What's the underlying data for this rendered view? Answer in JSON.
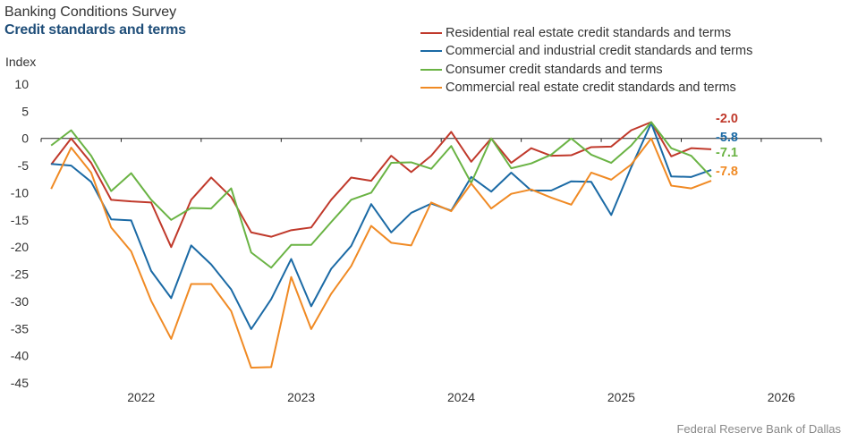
{
  "header": {
    "title": "Banking Conditions Survey",
    "subtitle": "Credit standards and terms"
  },
  "footer": {
    "source": "Federal Reserve Bank of Dallas"
  },
  "chart_data": {
    "type": "line",
    "title": "Credit standards and terms",
    "ylabel": "Index",
    "xlabel": "",
    "ylim": [
      -45,
      10
    ],
    "yticks": [
      10,
      5,
      0,
      -5,
      -10,
      -15,
      -20,
      -25,
      -30,
      -35,
      -40,
      -45
    ],
    "xticks": [
      "2022",
      "2023",
      "2024",
      "2025",
      "2026"
    ],
    "x_start": "2021-Q4 mid",
    "x_end": "2026-Q4",
    "x_index_range": [
      0,
      34
    ],
    "legend_position": "top-right",
    "series": [
      {
        "name": "Residential real estate credit standards and terms",
        "color": "#c0392b",
        "end_label": "-2.0",
        "values": [
          -4.8,
          0,
          -4.5,
          -11.3,
          -11.6,
          -11.8,
          -20,
          -11.3,
          -7.2,
          -10.8,
          -17.3,
          -18.1,
          -16.9,
          -16.4,
          -11.3,
          -7.2,
          -7.8,
          -3.2,
          -6.2,
          -3.2,
          1.2,
          -4.3,
          0,
          -4.5,
          -1.8,
          -3.2,
          -3.1,
          -1.6,
          -1.5,
          1.5,
          3.0,
          -3.3,
          -1.8,
          -2.0
        ],
        "x_index": [
          1,
          2,
          3,
          4,
          5,
          6,
          7,
          8,
          9,
          10,
          11,
          12,
          13,
          14,
          15,
          16,
          17,
          18,
          19,
          20,
          21,
          22,
          23,
          24,
          25,
          26,
          27,
          28,
          29,
          30,
          31,
          32,
          33,
          34
        ]
      },
      {
        "name": "Commercial and industrial credit standards and terms",
        "color": "#1b6aa5",
        "end_label": "-5.8",
        "values": [
          -4.7,
          -5.0,
          -8.0,
          -14.9,
          -15.1,
          -24.4,
          -29.4,
          -19.7,
          -23.2,
          -27.8,
          -35.1,
          -29.6,
          -22.2,
          -30.9,
          -24.0,
          -19.8,
          -12.1,
          -17.3,
          -13.7,
          -12.0,
          -13.3,
          -7.1,
          -9.8,
          -6.3,
          -9.6,
          -9.6,
          -7.9,
          -8.0,
          -14.1,
          -5.3,
          2.8,
          -7.0,
          -7.1,
          -5.8
        ],
        "x_index": [
          1,
          2,
          3,
          4,
          5,
          6,
          7,
          8,
          9,
          10,
          11,
          12,
          13,
          14,
          15,
          16,
          17,
          18,
          19,
          20,
          21,
          22,
          23,
          24,
          25,
          26,
          27,
          28,
          29,
          30,
          31,
          32,
          33,
          34
        ]
      },
      {
        "name": "Consumer credit standards and terms",
        "color": "#6ab344",
        "end_label": "-7.1",
        "values": [
          -1.3,
          1.5,
          -3.2,
          -9.7,
          -6.4,
          -11.3,
          -15.0,
          -12.8,
          -12.9,
          -9.2,
          -21.0,
          -23.8,
          -19.6,
          -19.6,
          -15.4,
          -11.3,
          -10.0,
          -4.5,
          -4.4,
          -5.6,
          -1.4,
          -8.2,
          0,
          -5.5,
          -4.6,
          -3.0,
          0,
          -3.0,
          -4.5,
          -1.3,
          3.0,
          -1.8,
          -3.2,
          -7.1
        ],
        "x_index": [
          1,
          2,
          3,
          4,
          5,
          6,
          7,
          8,
          9,
          10,
          11,
          12,
          13,
          14,
          15,
          16,
          17,
          18,
          19,
          20,
          21,
          22,
          23,
          24,
          25,
          26,
          27,
          28,
          29,
          30,
          31,
          32,
          33,
          34
        ]
      },
      {
        "name": "Commercial real estate credit standards and terms",
        "color": "#f08a24",
        "end_label": "-7.8",
        "values": [
          -9.3,
          -1.7,
          -6.3,
          -16.4,
          -20.8,
          -29.9,
          -36.9,
          -26.8,
          -26.8,
          -31.8,
          -42.2,
          -42.1,
          -25.5,
          -35.1,
          -28.6,
          -23.5,
          -16.1,
          -19.2,
          -19.7,
          -11.8,
          -13.4,
          -8.3,
          -12.9,
          -10.2,
          -9.4,
          -10.9,
          -12.2,
          -6.3,
          -7.6,
          -4.8,
          0,
          -8.7,
          -9.2,
          -7.8
        ],
        "x_index": [
          1,
          2,
          3,
          4,
          5,
          6,
          7,
          8,
          9,
          10,
          11,
          12,
          13,
          14,
          15,
          16,
          17,
          18,
          19,
          20,
          21,
          22,
          23,
          24,
          25,
          26,
          27,
          28,
          29,
          30,
          31,
          32,
          33,
          34
        ]
      }
    ]
  }
}
